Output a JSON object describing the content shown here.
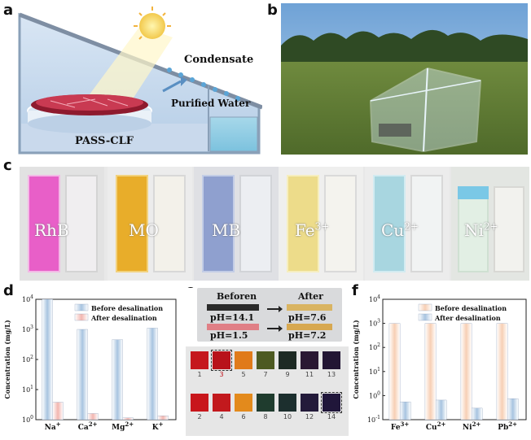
{
  "panel_labels": [
    "a",
    "b",
    "c",
    "d",
    "e",
    "f"
  ],
  "panel_a": {
    "condensate": "Condensate",
    "purified_water": "Purified Water",
    "device": "PASS-CLF"
  },
  "panel_c": {
    "samples": [
      {
        "label": "RhB",
        "color": "#e85fc8"
      },
      {
        "label": "MO",
        "color": "#e8ad2a"
      },
      {
        "label": "MB",
        "color": "#8fa0cf"
      },
      {
        "label": "Fe",
        "sup": "3+",
        "color": "#eddc8a"
      },
      {
        "label": "Cu",
        "sup": "2+",
        "color": "#a8d6e0"
      },
      {
        "label": "Ni",
        "sup": "2+",
        "color": "#7ac8e6"
      }
    ]
  },
  "panel_e": {
    "beforen": "Beforen",
    "after": "After",
    "ph_before_1": "pH=14.1",
    "ph_after_1": "pH=7.6",
    "ph_before_2": "pH=1.5",
    "ph_after_2": "pH=7.2",
    "row1_numbers": [
      "1",
      "3",
      "5",
      "7",
      "9",
      "11",
      "13"
    ],
    "row2_numbers": [
      "2",
      "4",
      "6",
      "8",
      "10",
      "12",
      "14"
    ],
    "row1_colors": [
      "#c5171d",
      "#b8121a",
      "#e07a1a",
      "#4d5a22",
      "#1d2a24",
      "#2a1833",
      "#221533"
    ],
    "row2_colors": [
      "#c8161b",
      "#c2191d",
      "#e38a1c",
      "#1f3c2e",
      "#1c2f2e",
      "#231a3a",
      "#20163a"
    ]
  },
  "chart_data": [
    {
      "type": "bar",
      "title": "",
      "xlabel": "",
      "ylabel": "Concentration (mg/L)",
      "yscale": "log",
      "ylim": [
        1,
        10000
      ],
      "yticks": [
        "10",
        "10",
        "10",
        "10",
        "10"
      ],
      "ytick_exp": [
        "0",
        "1",
        "2",
        "3",
        "4"
      ],
      "categories": [
        "Na",
        "Ca",
        "Mg",
        "K"
      ],
      "category_sups": [
        "+",
        "2+",
        "2+",
        "+"
      ],
      "series": [
        {
          "name": "Before desalination",
          "values": [
            10000,
            1000,
            450,
            1100
          ],
          "color": "#a8c4e0"
        },
        {
          "name": "After desalination",
          "values": [
            3.8,
            1.6,
            1.15,
            1.35
          ],
          "color": "#f2b6b0"
        }
      ],
      "legend": "top-right"
    },
    {
      "type": "bar",
      "title": "",
      "xlabel": "",
      "ylabel": "Concentration (mg/L)",
      "yscale": "log",
      "ylim": [
        0.1,
        10000
      ],
      "yticks": [
        "10",
        "10",
        "10",
        "10",
        "10",
        "10"
      ],
      "ytick_exp": [
        "-1",
        "0",
        "1",
        "2",
        "3",
        "4"
      ],
      "categories": [
        "Fe",
        "Cu",
        "Ni",
        "Pb"
      ],
      "category_sups": [
        "3+",
        "2+",
        "2+",
        "2+"
      ],
      "series": [
        {
          "name": "Before desalination",
          "values": [
            1000,
            1000,
            1000,
            1000
          ],
          "color": "#f7cfb4"
        },
        {
          "name": "After desalination",
          "values": [
            0.55,
            0.65,
            0.3,
            0.75
          ],
          "color": "#a8c4e0"
        }
      ],
      "legend": "top-right"
    }
  ]
}
